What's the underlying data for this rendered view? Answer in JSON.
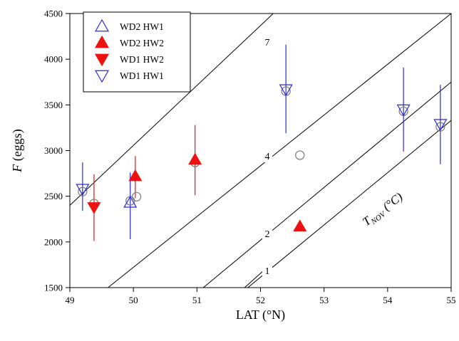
{
  "chart_data": {
    "type": "scatter",
    "title": "",
    "xlabel": "LAT (°N)",
    "ylabel_italic": "F",
    "ylabel_rest": " (eggs)",
    "xlim": [
      49,
      55
    ],
    "ylim": [
      1500,
      4500
    ],
    "x_ticks": [
      49,
      50,
      51,
      52,
      53,
      54,
      55
    ],
    "y_ticks": [
      1500,
      2000,
      2500,
      3000,
      3500,
      4000,
      4500
    ],
    "grid": false,
    "legend_position": "top-left",
    "series": [
      {
        "name": "WD2 HW1",
        "marker": "triangle-up-open",
        "color": "#2a2adb",
        "points": [
          {
            "x": 49.95,
            "y": 2430,
            "err_low": 2030,
            "err_high": 2760
          }
        ]
      },
      {
        "name": "WD2 HW2",
        "marker": "triangle-up-filled",
        "color": "#ee1111",
        "points": [
          {
            "x": 50.03,
            "y": 2720,
            "err_low": 2480,
            "err_high": 2940
          },
          {
            "x": 50.97,
            "y": 2900,
            "err_low": 2510,
            "err_high": 3280
          },
          {
            "x": 52.62,
            "y": 2170
          }
        ]
      },
      {
        "name": "WD1 HW2",
        "marker": "triangle-down-filled",
        "color": "#ee1111",
        "points": [
          {
            "x": 49.38,
            "y": 2380,
            "err_low": 2010,
            "err_high": 2740
          }
        ]
      },
      {
        "name": "WD1 HW1",
        "marker": "triangle-down-open",
        "color": "#2a2adb",
        "points": [
          {
            "x": 49.2,
            "y": 2580,
            "err_low": 2340,
            "err_high": 2870
          },
          {
            "x": 52.4,
            "y": 3670,
            "err_low": 3190,
            "err_high": 4160
          },
          {
            "x": 54.25,
            "y": 3450,
            "err_low": 2990,
            "err_high": 3910
          },
          {
            "x": 54.83,
            "y": 3290,
            "err_low": 2850,
            "err_high": 3720
          }
        ]
      },
      {
        "marker": "circle-open",
        "color": "#777777",
        "points": [
          {
            "x": 49.2,
            "y": 2550
          },
          {
            "x": 49.38,
            "y": 2420
          },
          {
            "x": 49.95,
            "y": 2450
          },
          {
            "x": 50.05,
            "y": 2495
          },
          {
            "x": 50.97,
            "y": 2870
          },
          {
            "x": 52.4,
            "y": 3650
          },
          {
            "x": 52.62,
            "y": 2950
          },
          {
            "x": 54.25,
            "y": 3430
          },
          {
            "x": 54.83,
            "y": 3260
          }
        ]
      }
    ],
    "isolines": [
      {
        "label": "7",
        "x1": 49.0,
        "y1": 2400,
        "x2": 52.2,
        "y2": 4500
      },
      {
        "label": "4",
        "x1": 49.6,
        "y1": 1500,
        "x2": 55.0,
        "y2": 4500
      },
      {
        "label": "2",
        "x1": 51.1,
        "y1": 1500,
        "x2": 55.0,
        "y2": 3750
      },
      {
        "label": "1",
        "x1": 51.8,
        "y1": 1500,
        "x2": 55.0,
        "y2": 3330
      },
      {
        "label": "",
        "x1": 51.75,
        "y1": 1500,
        "x2": 52.15,
        "y2": 1750
      }
    ],
    "isoline_title_main": "T",
    "isoline_title_sub": "NOV",
    "isoline_title_unit": " (°C)"
  }
}
